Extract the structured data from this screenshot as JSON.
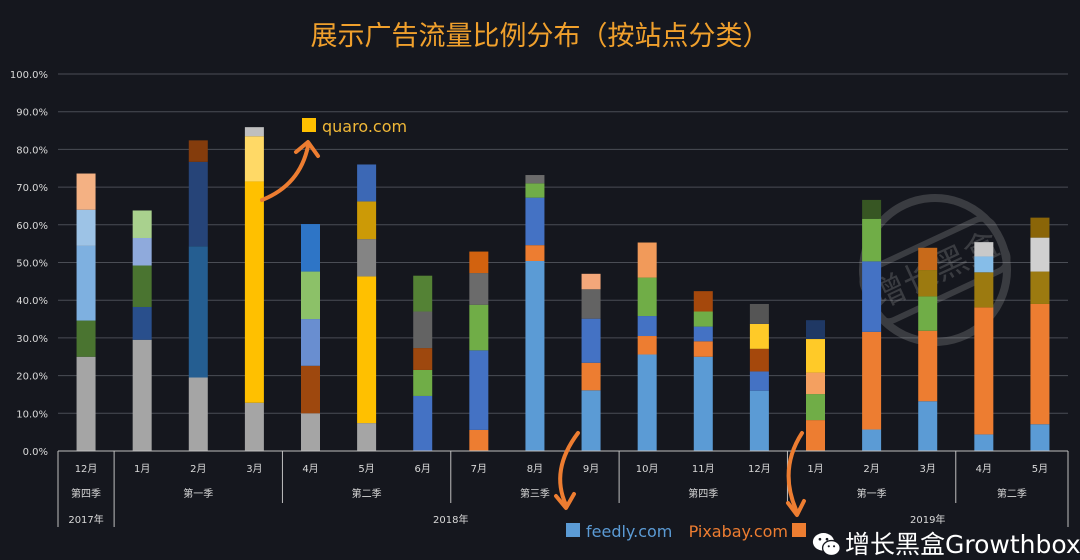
{
  "chart_data": {
    "type": "bar",
    "stacked": true,
    "title": "展示广告流量比例分布（按站点分类）",
    "ylim": [
      0,
      100
    ],
    "yticks": [
      "0.0%",
      "10.0%",
      "20.0%",
      "30.0%",
      "40.0%",
      "50.0%",
      "60.0%",
      "70.0%",
      "80.0%",
      "90.0%",
      "100.0%"
    ],
    "grid": true,
    "categories": [
      "12月",
      "1月",
      "2月",
      "3月",
      "4月",
      "5月",
      "6月",
      "7月",
      "8月",
      "9月",
      "10月",
      "11月",
      "12月",
      "1月",
      "2月",
      "3月",
      "4月",
      "5月"
    ],
    "quarters": [
      {
        "label": "第四季",
        "span": 1
      },
      {
        "label": "第一季",
        "span": 3
      },
      {
        "label": "第二季",
        "span": 3
      },
      {
        "label": "第三季",
        "span": 3
      },
      {
        "label": "第四季",
        "span": 3
      },
      {
        "label": "第一季",
        "span": 3
      },
      {
        "label": "第二季",
        "span": 2
      }
    ],
    "years": [
      {
        "label": "2017年",
        "span": 1
      },
      {
        "label": "2018年",
        "span": 12
      },
      {
        "label": "2019年",
        "span": 5
      }
    ],
    "bars": [
      [
        [
          25,
          "#a5a5a5"
        ],
        [
          9.6,
          "#4a7430"
        ],
        [
          19.8,
          "#7eb0e0"
        ],
        [
          9.6,
          "#9dc3e6"
        ],
        [
          9.6,
          "#f4b183"
        ]
      ],
      [
        [
          29.5,
          "#a5a5a5"
        ],
        [
          8.7,
          "#294f8c"
        ],
        [
          11,
          "#4a7430"
        ],
        [
          7.3,
          "#8faadc"
        ],
        [
          7.3,
          "#a9d18e"
        ]
      ],
      [
        [
          19.5,
          "#a5a5a5"
        ],
        [
          34.8,
          "#255e91"
        ],
        [
          22.4,
          "#264478"
        ],
        [
          5.7,
          "#843c0c"
        ]
      ],
      [
        [
          12.8,
          "#a5a5a5"
        ],
        [
          58.7,
          "#ffc000"
        ],
        [
          12,
          "#ffd966"
        ],
        [
          2.4,
          "#bfbfbf"
        ]
      ],
      [
        [
          10,
          "#a5a5a5"
        ],
        [
          12.6,
          "#9e480e"
        ],
        [
          12.4,
          "#698ed0"
        ],
        [
          12.6,
          "#8cc168"
        ],
        [
          12.6,
          "#2e75c6"
        ]
      ],
      [
        [
          7.4,
          "#a5a5a5"
        ],
        [
          38.9,
          "#ffc000"
        ],
        [
          9.9,
          "#848484"
        ],
        [
          10,
          "#cc9a06"
        ],
        [
          9.8,
          "#3c68b5"
        ]
      ],
      [
        [
          14.6,
          "#4472c4"
        ],
        [
          6.9,
          "#70ad47"
        ],
        [
          5.8,
          "#9e480e"
        ],
        [
          9.7,
          "#636363"
        ],
        [
          9.5,
          "#548235"
        ]
      ],
      [
        [
          5.6,
          "#ed7d31"
        ],
        [
          21.1,
          "#4472c4"
        ],
        [
          12.1,
          "#70ad47"
        ],
        [
          8.4,
          "#6b6b6b"
        ],
        [
          5.7,
          "#d2620f"
        ]
      ],
      [
        [
          50.4,
          "#5b9bd5"
        ],
        [
          4.2,
          "#ed7d31"
        ],
        [
          12.6,
          "#4472c4"
        ],
        [
          3.8,
          "#70ad47"
        ],
        [
          2.2,
          "#6b6b6b"
        ]
      ],
      [
        [
          16.1,
          "#5b9bd5"
        ],
        [
          7.3,
          "#ed7d31"
        ],
        [
          11.7,
          "#4472c4"
        ],
        [
          7.8,
          "#636363"
        ],
        [
          4.1,
          "#f4a77a"
        ]
      ],
      [
        [
          25.6,
          "#5b9bd5"
        ],
        [
          4.9,
          "#ed7d31"
        ],
        [
          5.3,
          "#4472c4"
        ],
        [
          10.2,
          "#70ad47"
        ],
        [
          9.3,
          "#f19a5a"
        ]
      ],
      [
        [
          25,
          "#5b9bd5"
        ],
        [
          4.1,
          "#ed7d31"
        ],
        [
          3.9,
          "#4472c4"
        ],
        [
          4,
          "#70ad47"
        ],
        [
          5.4,
          "#a5480c"
        ]
      ],
      [
        [
          16,
          "#5b9bd5"
        ],
        [
          5.1,
          "#4472c4"
        ],
        [
          6,
          "#a5480c"
        ],
        [
          6.6,
          "#ffca28"
        ],
        [
          5.3,
          "#555555"
        ]
      ],
      [
        [
          8.2,
          "#ed7d31"
        ],
        [
          6.9,
          "#70ad47"
        ],
        [
          5.7,
          "#f4a060"
        ],
        [
          8.9,
          "#ffca28"
        ],
        [
          5,
          "#1f3864"
        ]
      ],
      [
        [
          5.7,
          "#5b9bd5"
        ],
        [
          25.9,
          "#ed7d31"
        ],
        [
          18.7,
          "#4472c4"
        ],
        [
          11.3,
          "#70ad47"
        ],
        [
          5,
          "#375623"
        ]
      ],
      [
        [
          13.2,
          "#5b9bd5"
        ],
        [
          18.7,
          "#ed7d31"
        ],
        [
          9.1,
          "#70ad47"
        ],
        [
          7,
          "#9c7a10"
        ],
        [
          5.9,
          "#c86a1a"
        ]
      ],
      [
        [
          4.4,
          "#5b9bd5"
        ],
        [
          33.7,
          "#ed7d31"
        ],
        [
          9.3,
          "#9c7a10"
        ],
        [
          4.2,
          "#86bde8"
        ],
        [
          3.8,
          "#c9c9c9"
        ]
      ],
      [
        [
          7.1,
          "#5b9bd5"
        ],
        [
          31.9,
          "#ed7d31"
        ],
        [
          8.6,
          "#9c7a10"
        ],
        [
          9,
          "#d0d0d0"
        ],
        [
          5.3,
          "#8a6508"
        ]
      ]
    ],
    "annotations": [
      {
        "label": "quaro.com",
        "color": "#ffc000",
        "text_color": "#f0b838"
      },
      {
        "label": "feedly.com",
        "color": "#5b9bd5",
        "text_color": "#5b9bd5"
      },
      {
        "label": "Pixabay.com",
        "color": "#ed7d31",
        "text_color": "#ed7d31"
      }
    ],
    "arrow_color": "#ed7d31",
    "title_color": "#f0a02c"
  },
  "watermark": {
    "text": "增长黑盒Growthbox",
    "stamp_text": "增长黑盒"
  }
}
